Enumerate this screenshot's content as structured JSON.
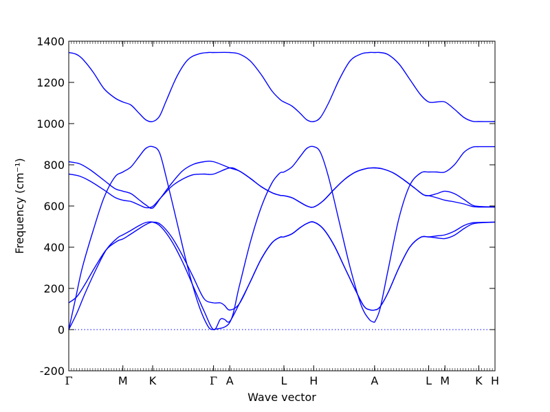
{
  "chart_data": {
    "type": "line",
    "xlabel": "Wave vector",
    "ylabel": "Frequency (cm⁻¹)",
    "ylim": [
      -200,
      1400
    ],
    "xlim": [
      0,
      3.15
    ],
    "y_ticks": [
      -200,
      0,
      200,
      400,
      600,
      800,
      1000,
      1200,
      1400
    ],
    "grid": false,
    "color": "#0000ff",
    "zero_line": {
      "y": 0,
      "style": "dotted"
    },
    "x_ticks": [
      {
        "label": "Γ",
        "x": 0.0
      },
      {
        "label": "M",
        "x": 0.4
      },
      {
        "label": "K",
        "x": 0.62
      },
      {
        "label": "Γ",
        "x": 1.07
      },
      {
        "label": "A",
        "x": 1.19
      },
      {
        "label": "L",
        "x": 1.59
      },
      {
        "label": "H",
        "x": 1.81
      },
      {
        "label": "A",
        "x": 2.26
      },
      {
        "label": "L",
        "x": 2.66
      },
      {
        "label": "M",
        "x": 2.78
      },
      {
        "label": "K",
        "x": 3.03
      },
      {
        "label": "H",
        "x": 3.15
      }
    ],
    "series": [
      {
        "x": [
          0.0,
          0.05,
          0.1,
          0.18,
          0.26,
          0.34,
          0.4,
          0.46,
          0.52,
          0.57,
          0.62,
          0.67,
          0.72,
          0.8,
          0.88,
          0.96,
          1.03,
          1.07,
          1.19,
          1.26,
          1.34,
          1.42,
          1.5,
          1.56,
          1.59,
          1.65,
          1.71,
          1.76,
          1.81,
          1.86,
          1.92,
          2.0,
          2.08,
          2.16,
          2.22,
          2.26,
          2.3,
          2.36,
          2.44,
          2.52,
          2.6,
          2.66,
          2.72,
          2.78,
          2.85,
          2.92,
          2.98,
          3.03,
          3.15
        ],
        "y": [
          1345,
          1338,
          1315,
          1250,
          1170,
          1125,
          1105,
          1090,
          1050,
          1018,
          1010,
          1035,
          1110,
          1230,
          1310,
          1338,
          1345,
          1345,
          1345,
          1338,
          1305,
          1240,
          1160,
          1118,
          1105,
          1085,
          1050,
          1018,
          1010,
          1030,
          1100,
          1215,
          1305,
          1338,
          1345,
          1345,
          1345,
          1335,
          1290,
          1215,
          1140,
          1105,
          1105,
          1105,
          1070,
          1030,
          1012,
          1010,
          1010
        ]
      },
      {
        "x": [
          0.0,
          0.05,
          0.1,
          0.18,
          0.26,
          0.34,
          0.4,
          0.46,
          0.52,
          0.57,
          0.62,
          0.67,
          0.72,
          0.8,
          0.88,
          0.96,
          1.03,
          1.07
        ],
        "y": [
          0,
          150,
          300,
          480,
          640,
          740,
          765,
          790,
          840,
          880,
          888,
          860,
          740,
          520,
          300,
          120,
          15,
          0
        ]
      },
      {
        "x": [
          1.07,
          1.19,
          1.26,
          1.34,
          1.42,
          1.5,
          1.56,
          1.59,
          1.65,
          1.71,
          1.76,
          1.81,
          1.86,
          1.92,
          2.0,
          2.08,
          2.16,
          2.22,
          2.26
        ],
        "y": [
          0,
          35,
          210,
          420,
          590,
          710,
          760,
          765,
          790,
          840,
          880,
          888,
          860,
          740,
          520,
          300,
          120,
          50,
          35
        ]
      },
      {
        "x": [
          2.26,
          2.3,
          2.36,
          2.44,
          2.52,
          2.6,
          2.66,
          2.72,
          2.78,
          2.85,
          2.92,
          2.98,
          3.03,
          3.15
        ],
        "y": [
          35,
          100,
          290,
          540,
          700,
          760,
          765,
          765,
          765,
          800,
          860,
          885,
          888,
          888
        ]
      },
      {
        "x": [
          0.0,
          0.08,
          0.16,
          0.26,
          0.34,
          0.4,
          0.46,
          0.52,
          0.57,
          0.62,
          0.68,
          0.76,
          0.84,
          0.92,
          1.0,
          1.07,
          1.19,
          1.26,
          1.34,
          1.42,
          1.5,
          1.56,
          1.59,
          1.65,
          1.71,
          1.76,
          1.81,
          1.88,
          1.96,
          2.04,
          2.12,
          2.2,
          2.26,
          2.32,
          2.4,
          2.48,
          2.56,
          2.62,
          2.66,
          2.72,
          2.78,
          2.85,
          2.92,
          2.98,
          3.03,
          3.15
        ],
        "y": [
          815,
          805,
          775,
          725,
          685,
          672,
          660,
          630,
          605,
          590,
          640,
          710,
          770,
          802,
          815,
          815,
          785,
          770,
          735,
          695,
          665,
          652,
          650,
          640,
          618,
          600,
          595,
          625,
          680,
          730,
          765,
          782,
          785,
          780,
          760,
          725,
          685,
          655,
          650,
          660,
          672,
          660,
          632,
          605,
          598,
          595
        ]
      },
      {
        "x": [
          0.0,
          0.08,
          0.16,
          0.26,
          0.34,
          0.4,
          0.46,
          0.52,
          0.57,
          0.62,
          0.68,
          0.76,
          0.84,
          0.92,
          1.0,
          1.07,
          1.19,
          1.26,
          1.34,
          1.42,
          1.5,
          1.56,
          1.59,
          1.65,
          1.71,
          1.76,
          1.81,
          1.88,
          1.96,
          2.04,
          2.12,
          2.2,
          2.26,
          2.32,
          2.4,
          2.48,
          2.56,
          2.62,
          2.66,
          2.72,
          2.78,
          2.85,
          2.92,
          2.98,
          3.03,
          3.15
        ],
        "y": [
          755,
          745,
          720,
          678,
          642,
          628,
          622,
          605,
          592,
          598,
          640,
          695,
          730,
          752,
          755,
          755,
          785,
          770,
          735,
          695,
          665,
          652,
          650,
          640,
          618,
          600,
          595,
          625,
          680,
          730,
          765,
          782,
          785,
          780,
          760,
          725,
          685,
          655,
          650,
          640,
          628,
          620,
          610,
          598,
          595,
          595
        ]
      },
      {
        "x": [
          0.0,
          0.06,
          0.12,
          0.2,
          0.28,
          0.36,
          0.4,
          0.45,
          0.52,
          0.57,
          0.62,
          0.68,
          0.76,
          0.84,
          0.92,
          1.0,
          1.07,
          1.12,
          1.15,
          1.19,
          1.26,
          1.34,
          1.42,
          1.5,
          1.56,
          1.59,
          1.65,
          1.71,
          1.76,
          1.81,
          1.88,
          1.96,
          2.04,
          2.12,
          2.18,
          2.22,
          2.26,
          2.3,
          2.36,
          2.44,
          2.52,
          2.6,
          2.66,
          2.72,
          2.78,
          2.85,
          2.92,
          2.98,
          3.03,
          3.15
        ],
        "y": [
          0,
          80,
          175,
          290,
          390,
          445,
          460,
          478,
          505,
          520,
          522,
          500,
          430,
          330,
          210,
          90,
          0,
          50,
          50,
          40,
          125,
          230,
          340,
          420,
          448,
          450,
          465,
          495,
          515,
          522,
          490,
          410,
          300,
          190,
          115,
          97,
          95,
          110,
          180,
          300,
          400,
          448,
          450,
          455,
          460,
          478,
          505,
          518,
          520,
          522
        ]
      },
      {
        "x": [
          0.0,
          0.06,
          0.12,
          0.2,
          0.28,
          0.36,
          0.4,
          0.45,
          0.52,
          0.57,
          0.62,
          0.68,
          0.76,
          0.84,
          0.92,
          1.0,
          1.07,
          1.12,
          1.15,
          1.19,
          1.26,
          1.34,
          1.42,
          1.5,
          1.56,
          1.59,
          1.65,
          1.71,
          1.76,
          1.81,
          1.88,
          1.96,
          2.04,
          2.12,
          2.18,
          2.22,
          2.26,
          2.3,
          2.36,
          2.44,
          2.52,
          2.6,
          2.66,
          2.72,
          2.78,
          2.85,
          2.92,
          2.98,
          3.03,
          3.15
        ],
        "y": [
          130,
          160,
          220,
          310,
          390,
          430,
          440,
          460,
          490,
          510,
          522,
          510,
          450,
          360,
          255,
          150,
          130,
          130,
          118,
          95,
          125,
          230,
          340,
          420,
          448,
          450,
          465,
          495,
          515,
          522,
          490,
          410,
          300,
          190,
          115,
          97,
          95,
          110,
          180,
          300,
          400,
          448,
          450,
          445,
          442,
          458,
          490,
          512,
          518,
          522
        ]
      }
    ]
  }
}
